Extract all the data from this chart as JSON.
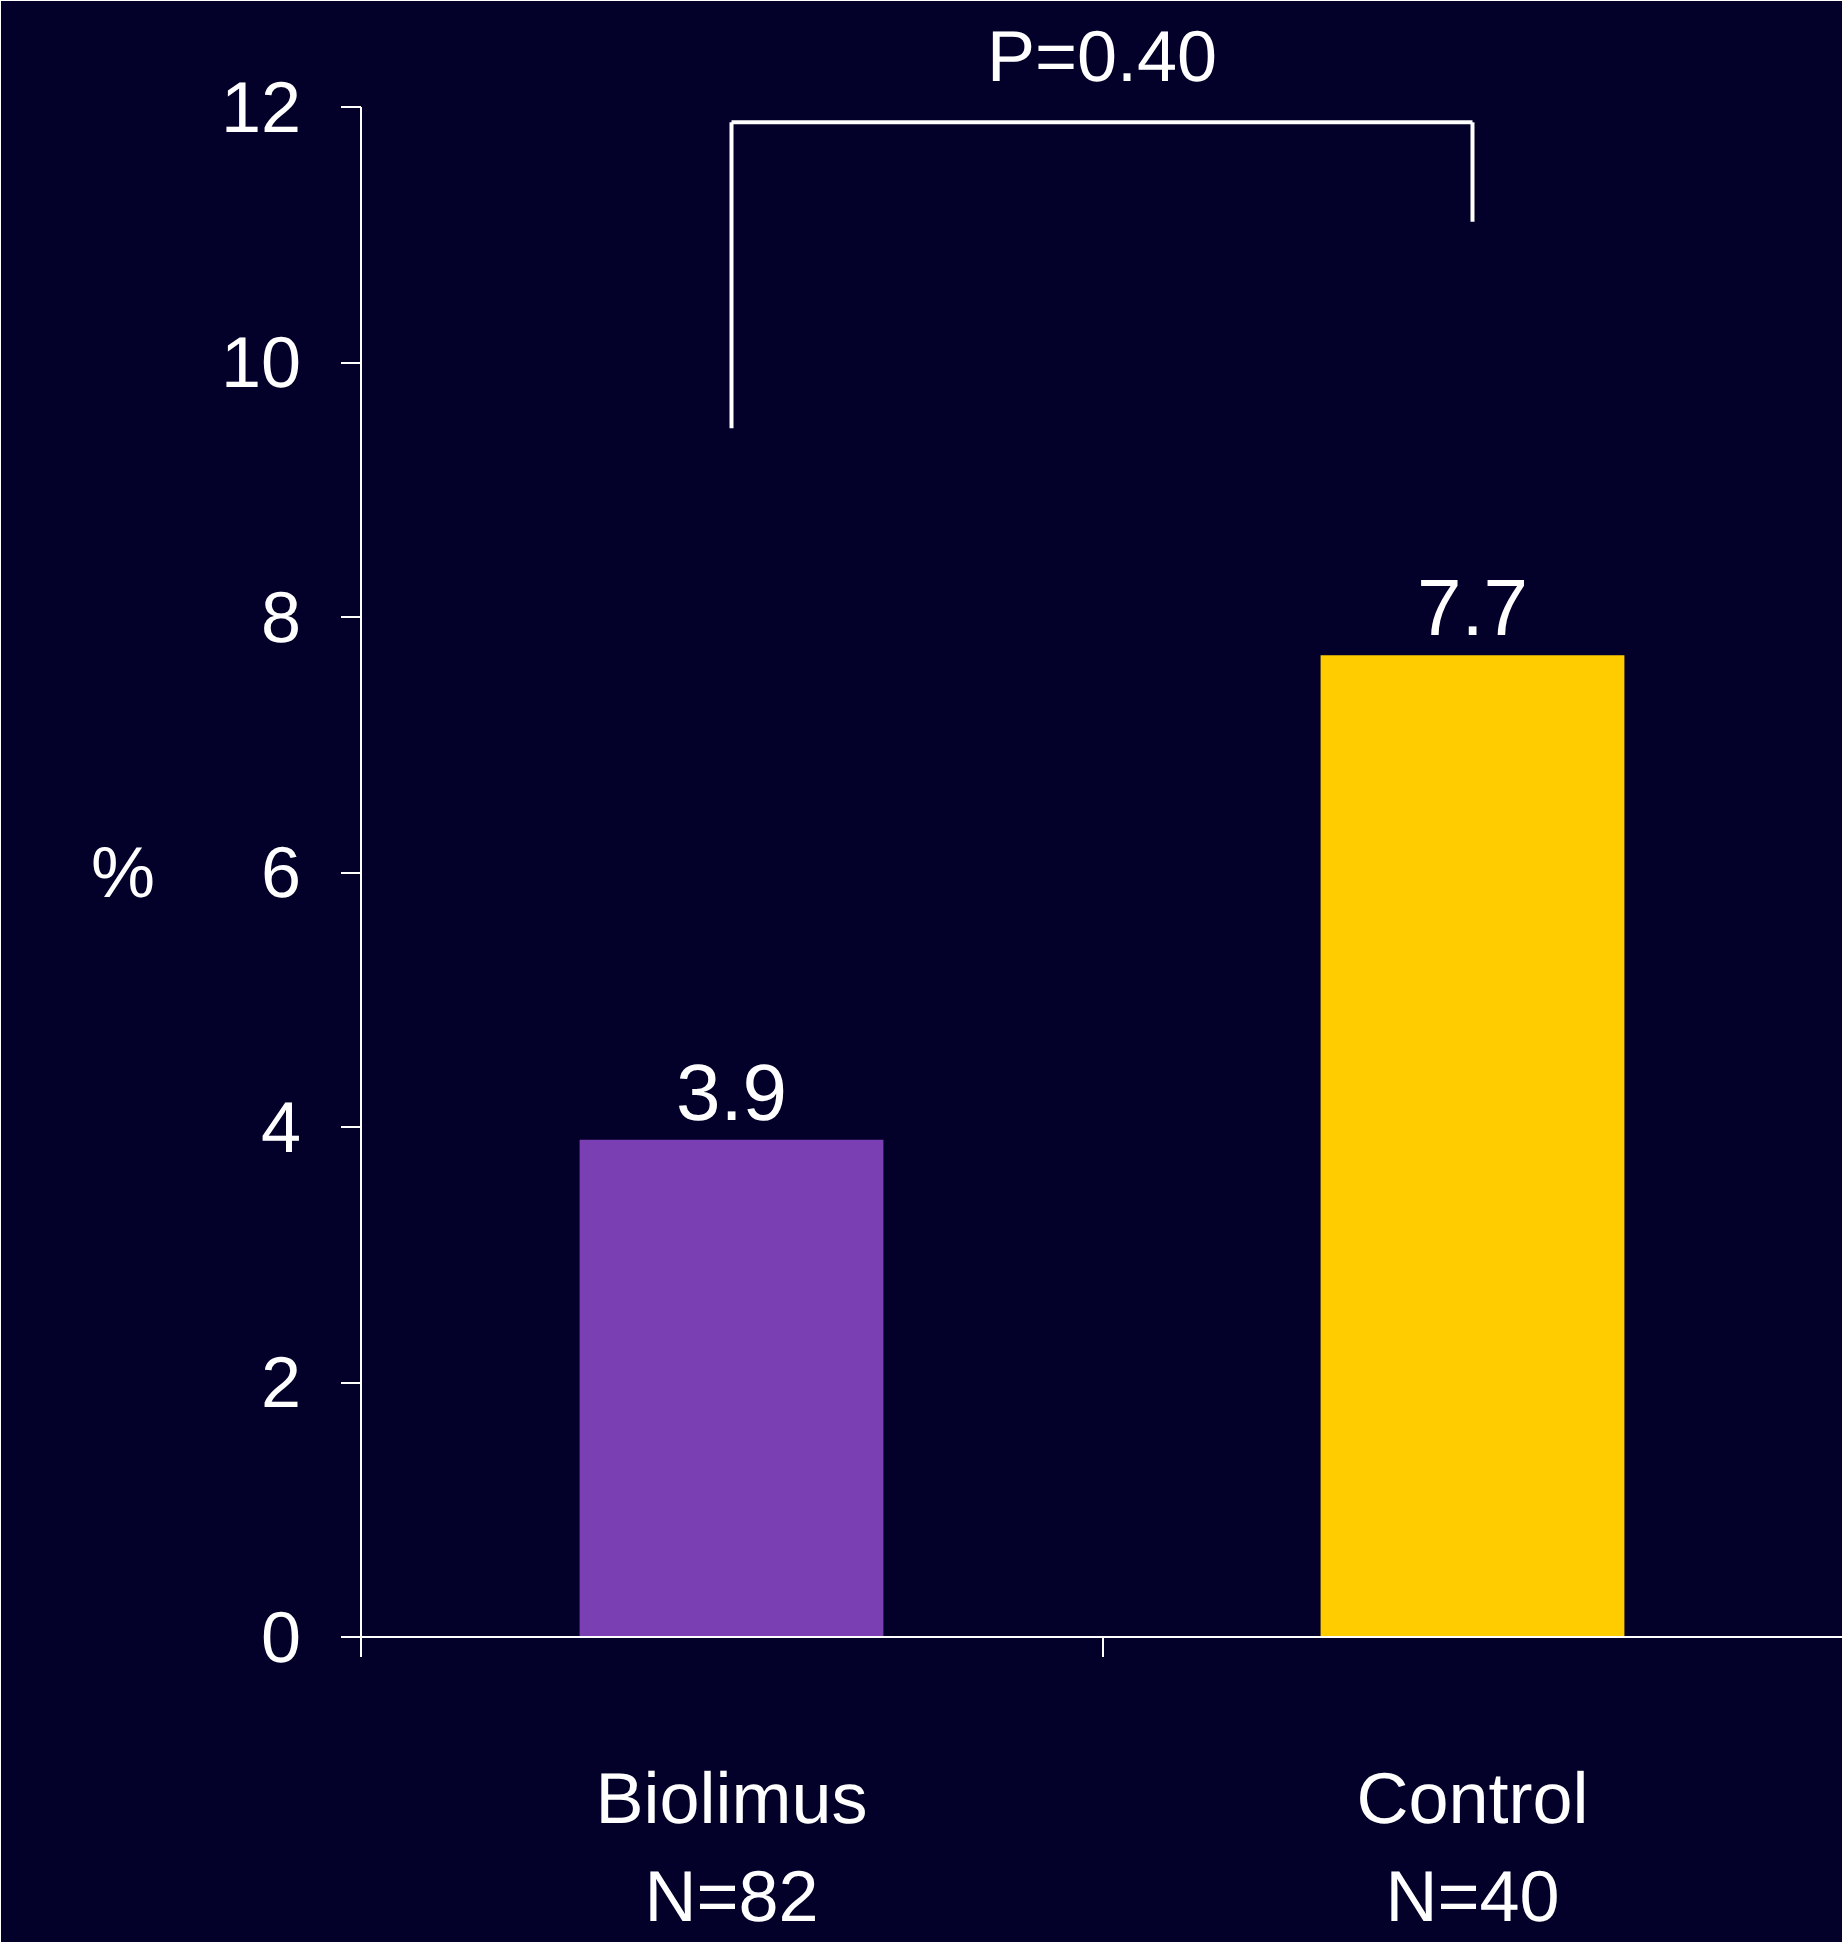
{
  "chart_data": {
    "type": "bar",
    "categories": [
      "Biolimus\nN=82",
      "Control\nN=40"
    ],
    "values": [
      3.9,
      7.7
    ],
    "colors": [
      "#7b3fb4",
      "#ffcc00"
    ],
    "ylabel": "%",
    "ylim": [
      0,
      12
    ],
    "yticks": [
      0,
      2,
      4,
      6,
      8,
      10,
      12
    ],
    "data_labels": true,
    "grid": false,
    "annotations": [
      "P=0.40"
    ]
  }
}
